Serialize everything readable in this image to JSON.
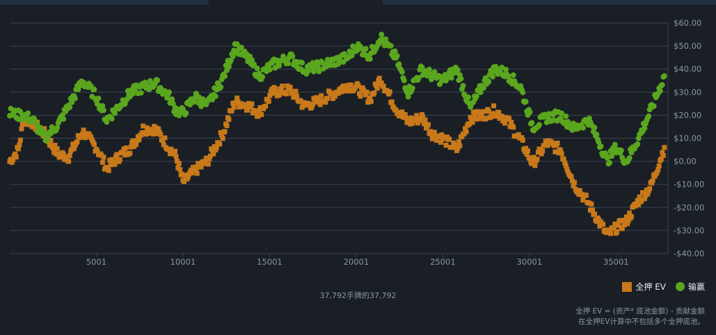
{
  "chart_data": {
    "type": "scatter",
    "title": "",
    "xlabel": "",
    "ylabel": "",
    "xlim": [
      0,
      38000
    ],
    "ylim": [
      -40,
      60
    ],
    "x_ticks": [
      5001,
      10001,
      15001,
      20001,
      25001,
      30001,
      35001
    ],
    "x_tick_labels": [
      "5001",
      "10001",
      "15001",
      "20001",
      "25001",
      "30001",
      "35001"
    ],
    "y_ticks": [
      -40,
      -30,
      -20,
      -10,
      0,
      10,
      20,
      30,
      40,
      50,
      60
    ],
    "y_tick_labels": [
      "-$40.00",
      "-$30.00",
      "-$20.00",
      "-$10.00",
      "$0.00",
      "$10.00",
      "$20.00",
      "$30.00",
      "$40.00",
      "$50.00",
      "$60.00"
    ],
    "grid": true,
    "legend_position": "bottom-right",
    "series": [
      {
        "name": "全押 EV",
        "color": "#c8791a",
        "marker": "square",
        "x": [
          0,
          500,
          800,
          1300,
          2000,
          2800,
          3400,
          4200,
          5000,
          5600,
          6300,
          7000,
          7700,
          8400,
          9200,
          9600,
          10000,
          10700,
          11400,
          12300,
          13000,
          13800,
          14400,
          15200,
          16200,
          17000,
          17800,
          18600,
          19500,
          20000,
          20800,
          21400,
          22300,
          23000,
          23800,
          24400,
          25000,
          25800,
          26600,
          27300,
          28000,
          28700,
          29500,
          30200,
          31000,
          31800,
          32600,
          33400,
          34000,
          34500,
          35000,
          35600,
          36300,
          37000,
          37792
        ],
        "values": [
          0,
          5,
          18,
          17,
          12,
          3,
          2,
          13,
          6,
          -3,
          2,
          6,
          14,
          14,
          6,
          2,
          -9,
          -4,
          0,
          12,
          26,
          24,
          21,
          30,
          31,
          24,
          26,
          29,
          33,
          32,
          27,
          36,
          23,
          17,
          19,
          12,
          10,
          5,
          19,
          20,
          22,
          18,
          9,
          -1,
          8,
          5,
          -10,
          -18,
          -26,
          -32,
          -29,
          -26,
          -17,
          -11,
          6
        ]
      },
      {
        "name": "输赢",
        "color": "#5aa61e",
        "marker": "circle",
        "x": [
          0,
          500,
          800,
          1300,
          2000,
          2800,
          3400,
          4200,
          5000,
          5600,
          6300,
          7000,
          7700,
          8400,
          9200,
          9600,
          10000,
          10700,
          11400,
          12300,
          13000,
          13800,
          14400,
          15200,
          16200,
          17000,
          17800,
          18600,
          19500,
          20000,
          20800,
          21400,
          22300,
          23000,
          23800,
          24400,
          25000,
          25800,
          26600,
          27300,
          28000,
          28700,
          29500,
          30200,
          31000,
          31800,
          32600,
          33400,
          34000,
          34500,
          35000,
          35600,
          36300,
          37000,
          37792
        ],
        "values": [
          21,
          20,
          20,
          18,
          10,
          16,
          24,
          35,
          28,
          18,
          24,
          30,
          32,
          34,
          28,
          22,
          21,
          28,
          24,
          36,
          50,
          44,
          37,
          42,
          45,
          40,
          41,
          43,
          45,
          50,
          46,
          54,
          45,
          30,
          40,
          37,
          35,
          40,
          23,
          33,
          40,
          38,
          32,
          15,
          19,
          20,
          14,
          18,
          9,
          0,
          6,
          0,
          10,
          22,
          37
        ]
      }
    ]
  },
  "footer": {
    "hands_count": "37,792手牌的37,792",
    "legend": [
      {
        "label": "全押 EV",
        "color": "#c8791a"
      },
      {
        "label": "输赢",
        "color": "#5aa61e"
      }
    ],
    "note_line1": "全押 EV = (资产* 底池金额) - 贡献金额",
    "note_line2": "在全押EV计算中不包括多个全押底池。"
  }
}
